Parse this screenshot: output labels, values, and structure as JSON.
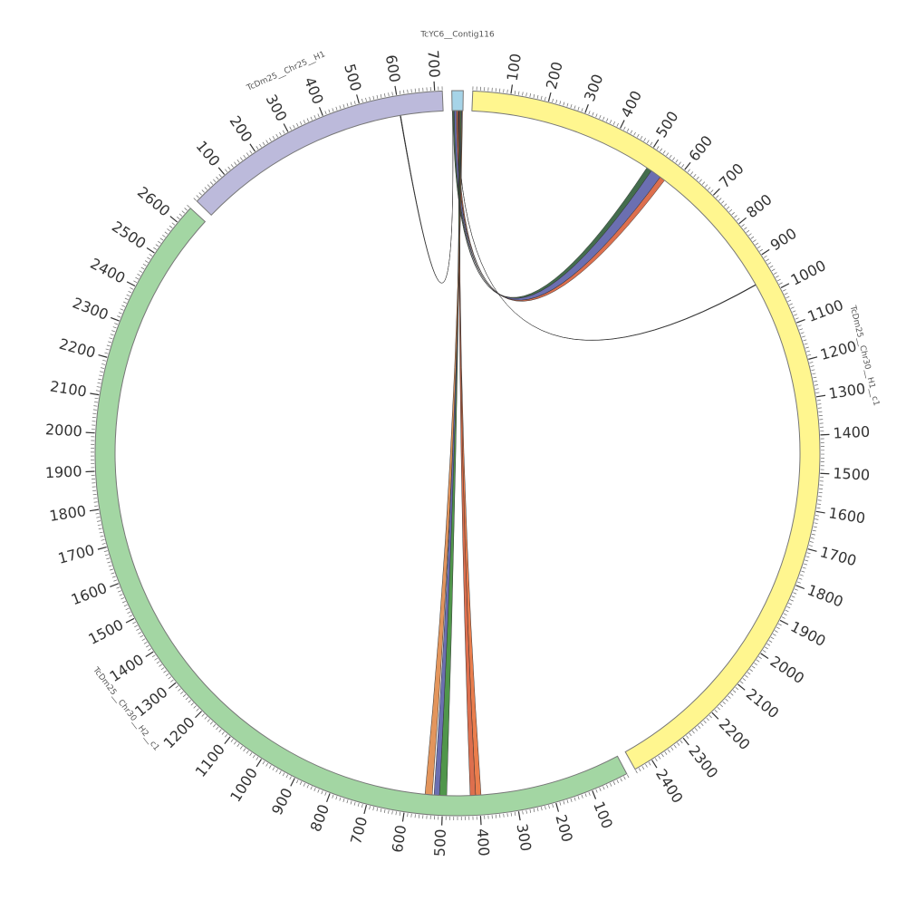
{
  "chart_data": {
    "type": "chord",
    "segments": [
      {
        "name": "TcYC6__Contig116",
        "length": 30,
        "color": "#a6d4e8",
        "ticks": []
      },
      {
        "name": "TcDm25__Chr30__H1__c1",
        "length": 2450,
        "color": "#fff68f",
        "ticks": [
          100,
          200,
          300,
          400,
          500,
          600,
          700,
          800,
          900,
          1000,
          1100,
          1200,
          1300,
          1400,
          1500,
          1600,
          1700,
          1800,
          1900,
          2000,
          2100,
          2200,
          2300,
          2400
        ]
      },
      {
        "name": "TcDm25__Chr30__H2__c1",
        "length": 2650,
        "color": "#a3d6a3",
        "ticks": [
          100,
          200,
          300,
          400,
          500,
          600,
          700,
          800,
          900,
          1000,
          1100,
          1200,
          1300,
          1400,
          1500,
          1600,
          1700,
          1800,
          1900,
          2000,
          2100,
          2200,
          2300,
          2400,
          2500,
          2600
        ]
      },
      {
        "name": "TcDm25__Chr25__H1",
        "length": 720,
        "color": "#bcbadb",
        "ticks": [
          100,
          200,
          300,
          400,
          500,
          600,
          700
        ]
      }
    ],
    "links": [
      {
        "from": [
          2,
          6
        ],
        "target": 1,
        "to": [
          515,
          530
        ],
        "color": "#2f5d3a"
      },
      {
        "from": [
          6,
          12
        ],
        "target": 1,
        "to": [
          530,
          560
        ],
        "color": "#5b5fa8"
      },
      {
        "from": [
          12,
          16
        ],
        "target": 1,
        "to": [
          560,
          575
        ],
        "color": "#d95f3b"
      },
      {
        "from": [
          16,
          16.3
        ],
        "target": 1,
        "to": [
          960,
          962
        ],
        "color": "#000000"
      },
      {
        "from": [
          1,
          1.3
        ],
        "target": 3,
        "to": [
          600,
          602
        ],
        "color": "#000000"
      },
      {
        "from": [
          18,
          20
        ],
        "target": 2,
        "to": [
          395,
          410
        ],
        "color": "#e8703a"
      },
      {
        "from": [
          20,
          22
        ],
        "target": 2,
        "to": [
          410,
          425
        ],
        "color": "#d95f3b"
      },
      {
        "from": [
          22,
          25
        ],
        "target": 2,
        "to": [
          490,
          510
        ],
        "color": "#3d8b37"
      },
      {
        "from": [
          25,
          27
        ],
        "target": 2,
        "to": [
          510,
          525
        ],
        "color": "#5b5fa8"
      },
      {
        "from": [
          27,
          29
        ],
        "target": 2,
        "to": [
          530,
          550
        ],
        "color": "#e08a4a"
      }
    ]
  }
}
